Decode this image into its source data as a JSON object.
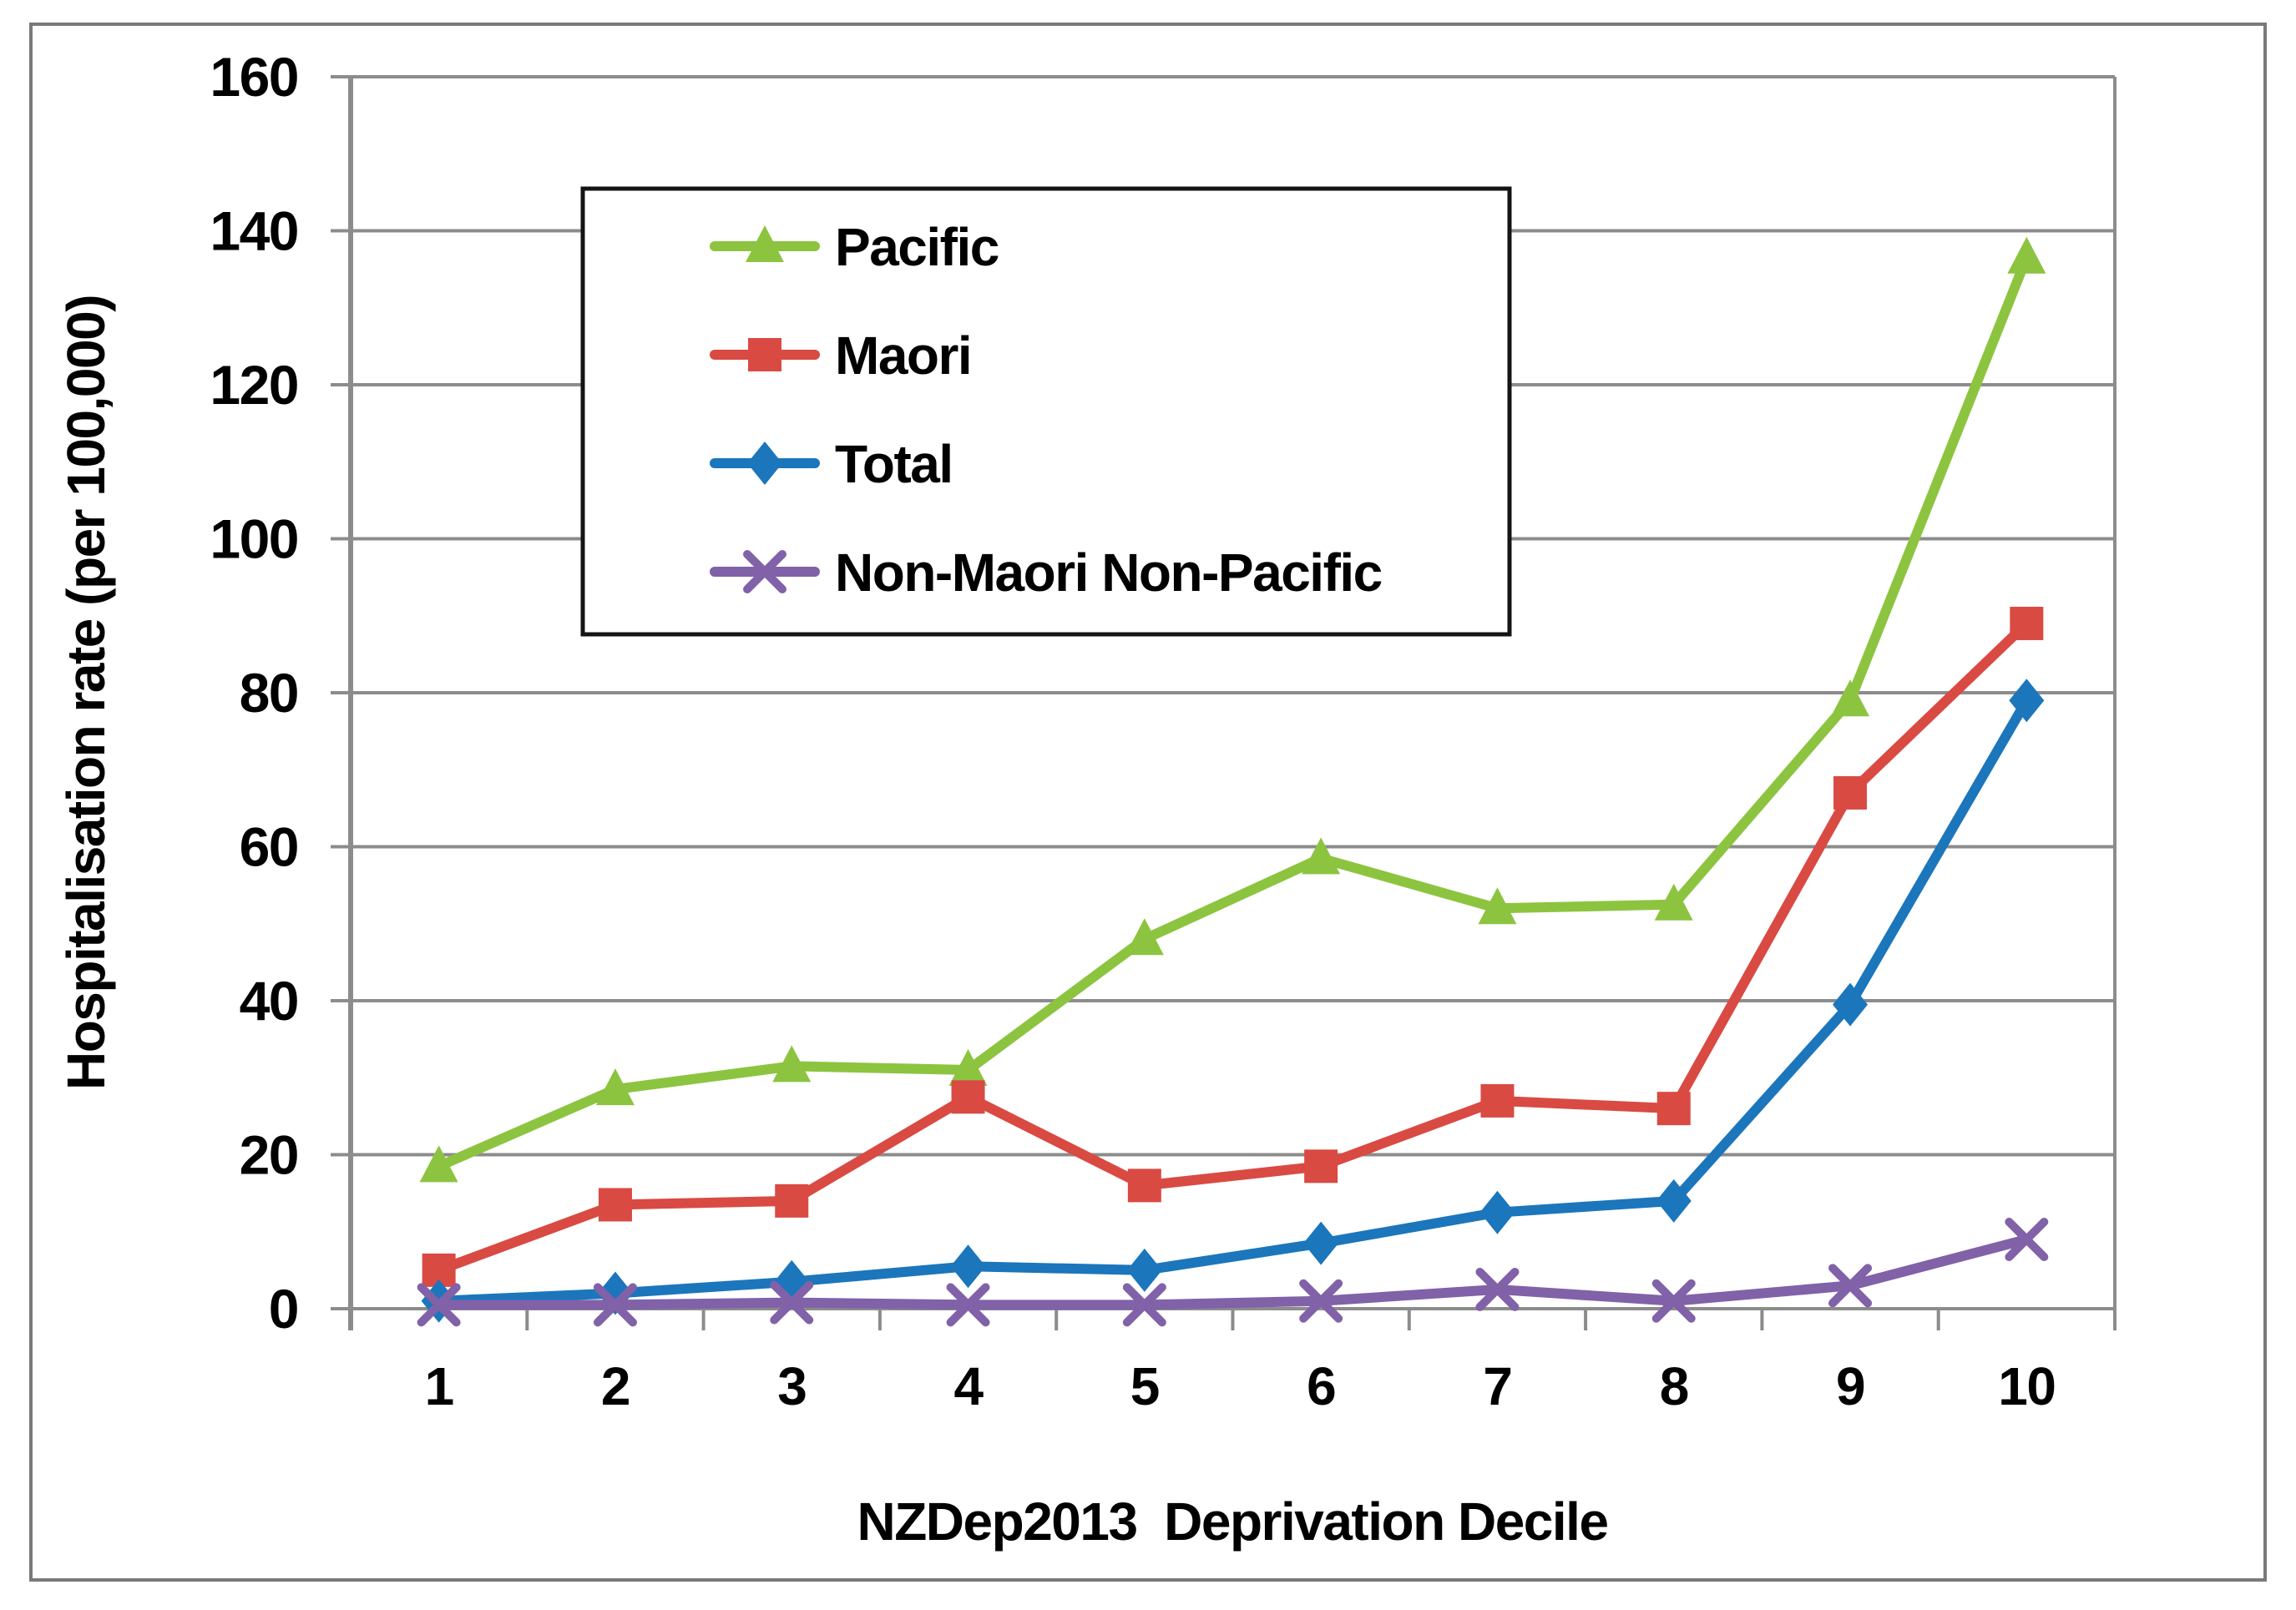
{
  "chart_data": {
    "type": "line",
    "title": "",
    "xlabel": "NZDep2013  Deprivation Decile",
    "ylabel": "Hospitalisation rate (per 100,000)",
    "x_categories": [
      "1",
      "2",
      "3",
      "4",
      "5",
      "6",
      "7",
      "8",
      "9",
      "10"
    ],
    "ylim": [
      0,
      160
    ],
    "yticks": [
      0,
      20,
      40,
      60,
      80,
      100,
      120,
      140,
      160
    ],
    "grid": "horizontal",
    "legend_position": "top-left-inside",
    "series": [
      {
        "name": "Pacific",
        "marker": "triangle",
        "color": "#8CC440",
        "values": [
          18.5,
          28.5,
          31.5,
          31,
          48,
          58.5,
          52,
          52.5,
          79,
          136.5
        ]
      },
      {
        "name": "Maori",
        "marker": "square",
        "color": "#D94A43",
        "values": [
          5,
          13.5,
          14,
          27.5,
          16,
          18.5,
          27,
          26,
          67,
          89
        ]
      },
      {
        "name": "Total",
        "marker": "diamond",
        "color": "#1B76BC",
        "values": [
          1,
          2,
          3.5,
          5.5,
          5,
          8.5,
          12.5,
          14,
          39.5,
          79
        ]
      },
      {
        "name": "Non-Maori Non-Pacific",
        "marker": "x",
        "color": "#8161A8",
        "values": [
          0.5,
          0.5,
          0.8,
          0.5,
          0.5,
          1,
          2.5,
          1,
          3,
          9
        ]
      }
    ],
    "style": {
      "grid_color": "#8C8C8C",
      "axis_color": "#8C8C8C",
      "figure_border_color": "#7A7A7A",
      "legend_border_color": "#141414",
      "text_color": "#000000"
    }
  }
}
